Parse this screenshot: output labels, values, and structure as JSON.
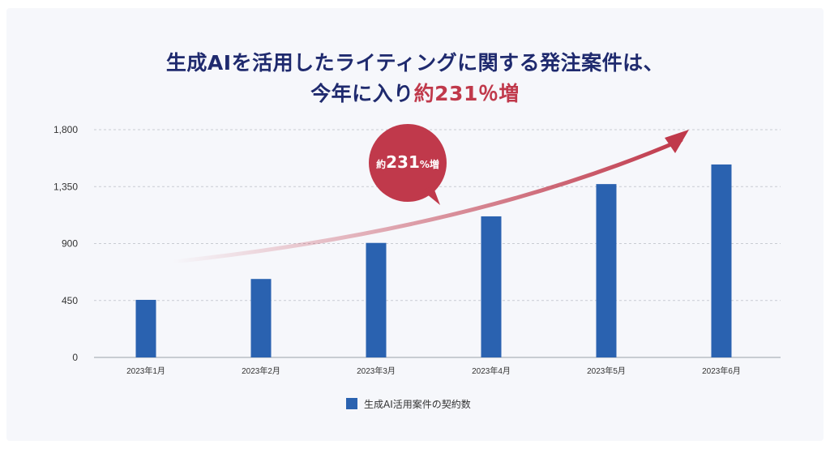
{
  "title": {
    "line1": "生成AIを活用したライティングに関する発注案件は、",
    "line2_prefix": "今年に入り",
    "line2_highlight": "約231％増"
  },
  "callout": {
    "prefix": "約",
    "number": "231",
    "suffix": "%増"
  },
  "colors": {
    "bar": "#2a62b0",
    "title": "#1f2a6e",
    "accent": "#c0394b"
  },
  "chart_data": {
    "type": "bar",
    "categories": [
      "2023年1月",
      "2023年2月",
      "2023年3月",
      "2023年4月",
      "2023年5月",
      "2023年6月"
    ],
    "series": [
      {
        "name": "生成AI活用案件の契約数",
        "values": [
          455,
          620,
          905,
          1115,
          1370,
          1525
        ]
      }
    ],
    "ylim": [
      0,
      1800
    ],
    "yticks": [
      "0",
      "450",
      "900",
      "1,350",
      "1,800"
    ],
    "ytick_values": [
      0,
      450,
      900,
      1350,
      1800
    ],
    "grid": true,
    "legend": "bottom-center"
  }
}
